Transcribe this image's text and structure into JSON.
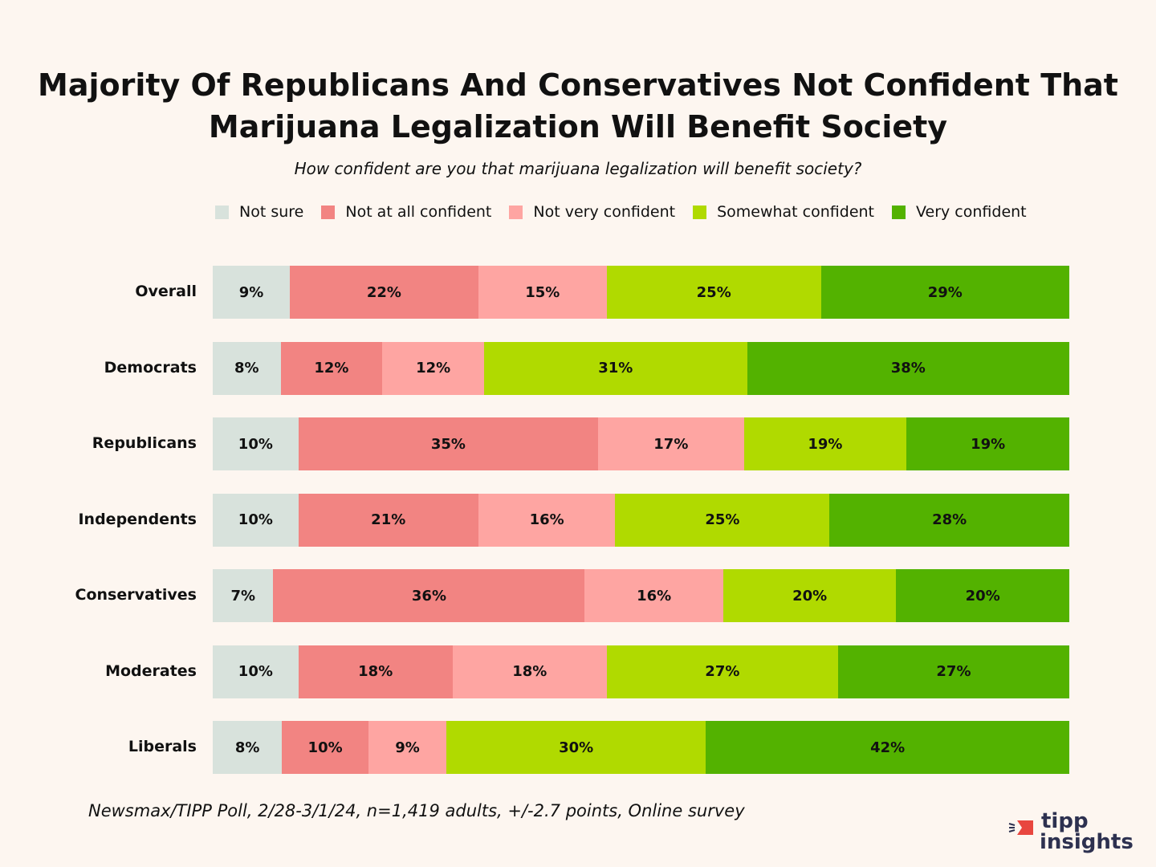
{
  "title_line1": "Majority Of Republicans And Conservatives Not Confident That",
  "title_line2": "Marijuana Legalization Will Benefit Society",
  "subtitle": "How confident are you that marijuana legalization will benefit society?",
  "source": "Newsmax/TIPP Poll, 2/28-3/1/24, n=1,419 adults, +/-2.7 points, Online survey",
  "logo": {
    "line1": "tipp",
    "line2": "insights",
    "accent": "#e8463f",
    "text_color": "#2d3150"
  },
  "chart_data": {
    "type": "bar",
    "orientation": "horizontal-stacked-100",
    "title": "Majority Of Republicans And Conservatives Not Confident That Marijuana Legalization Will Benefit Society",
    "subtitle": "How confident are you that marijuana legalization will benefit society?",
    "xlabel": "",
    "ylabel": "",
    "legend_position": "top",
    "grid": false,
    "categories": [
      "Overall",
      "Democrats",
      "Republicans",
      "Independents",
      "Conservatives",
      "Moderates",
      "Liberals"
    ],
    "series": [
      {
        "name": "Not sure",
        "color": "#d8e2dc",
        "values": [
          9,
          8,
          10,
          10,
          7,
          10,
          8
        ]
      },
      {
        "name": "Not at all confident",
        "color": "#f28482",
        "values": [
          22,
          12,
          35,
          21,
          36,
          18,
          10
        ]
      },
      {
        "name": "Not very confident",
        "color": "#fea5a2",
        "values": [
          15,
          12,
          17,
          16,
          16,
          18,
          9
        ]
      },
      {
        "name": "Somewhat confident",
        "color": "#b0da00",
        "values": [
          25,
          31,
          19,
          25,
          20,
          27,
          30
        ]
      },
      {
        "name": "Very confident",
        "color": "#53b200",
        "values": [
          29,
          38,
          19,
          28,
          20,
          27,
          42
        ]
      }
    ],
    "value_suffix": "%"
  }
}
